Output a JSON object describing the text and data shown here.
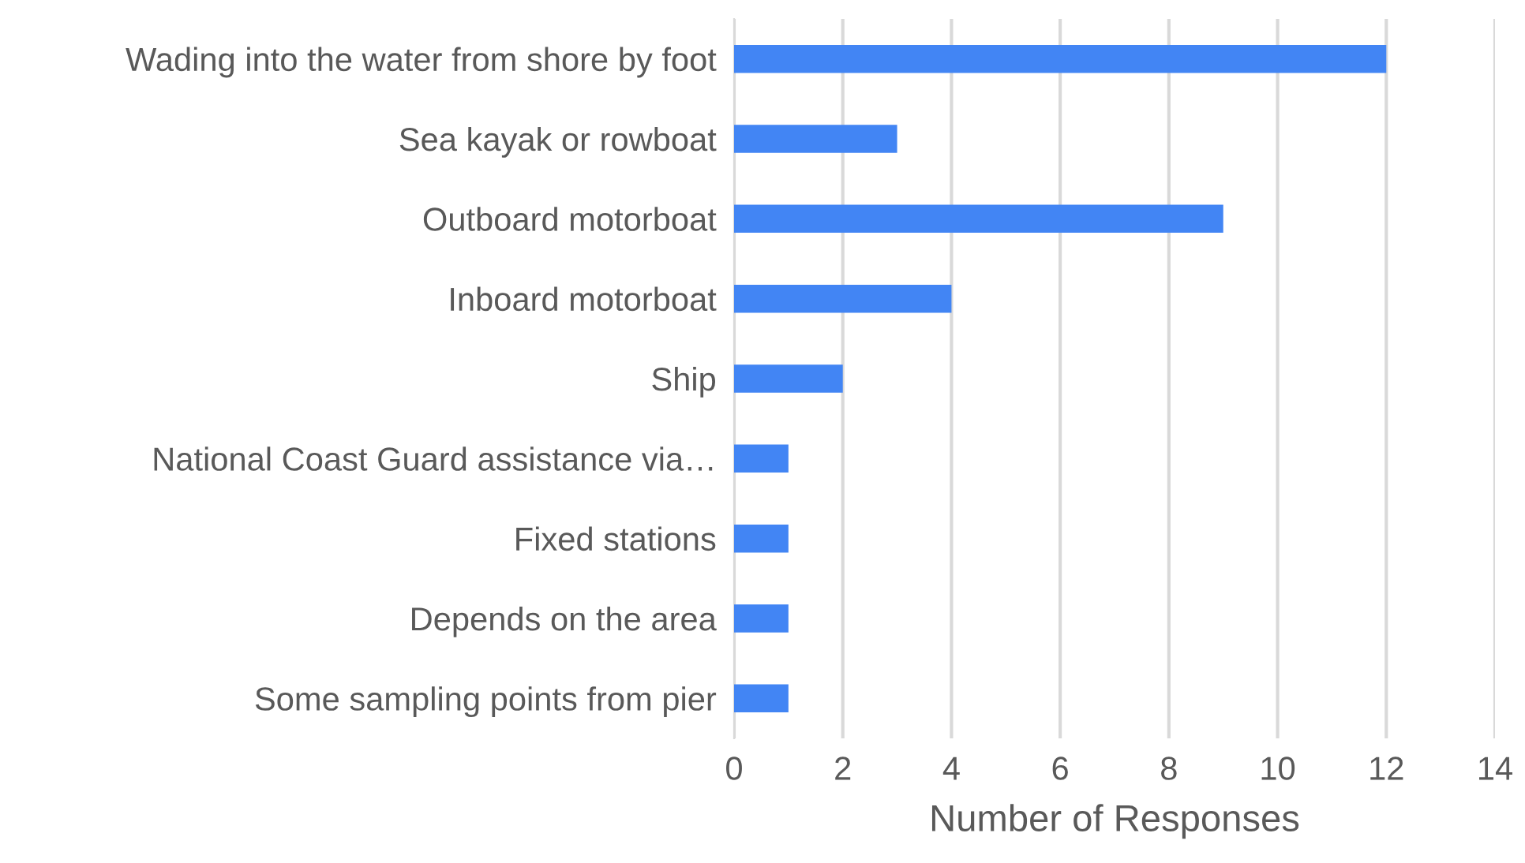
{
  "chart_data": {
    "type": "bar",
    "orientation": "horizontal",
    "xlabel": "Number of Responses",
    "categories": [
      "Wading into the water from shore by foot",
      "Sea kayak or rowboat",
      "Outboard motorboat",
      "Inboard motorboat",
      "Ship",
      "National Coast Guard assistance via…",
      "Fixed stations",
      "Depends on the area",
      "Some sampling points from pier"
    ],
    "values": [
      12,
      3,
      9,
      4,
      2,
      1,
      1,
      1,
      1
    ],
    "color": "#4285f4",
    "xlim": [
      0,
      14
    ],
    "xticks": [
      0,
      2,
      4,
      6,
      8,
      10,
      12,
      14
    ],
    "grid": "x",
    "legend": false
  }
}
